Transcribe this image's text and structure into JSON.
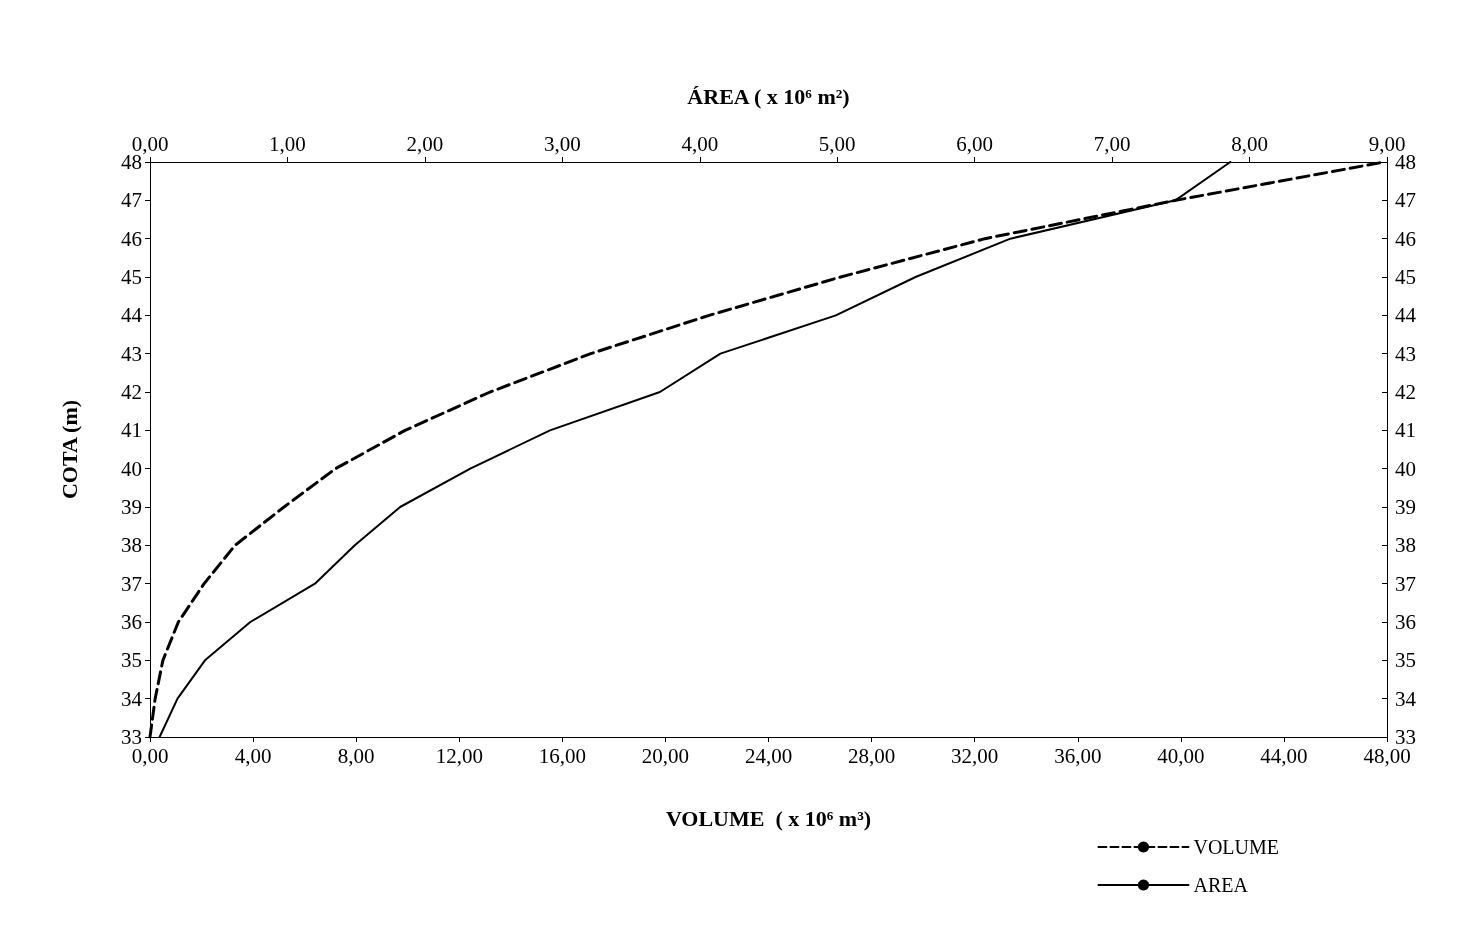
{
  "chart_data": {
    "type": "line",
    "xlabel": "VOLUME  ( x 10⁶ m³)",
    "x2label": "ÁREA ( x 10⁶ m²)",
    "ylabel": "COTA (m)",
    "xlim": [
      0,
      48
    ],
    "xticks": [
      {
        "value": 0,
        "label": "0,00"
      },
      {
        "value": 4,
        "label": "4,00"
      },
      {
        "value": 8,
        "label": "8,00"
      },
      {
        "value": 12,
        "label": "12,00"
      },
      {
        "value": 16,
        "label": "16,00"
      },
      {
        "value": 20,
        "label": "20,00"
      },
      {
        "value": 24,
        "label": "24,00"
      },
      {
        "value": 28,
        "label": "28,00"
      },
      {
        "value": 32,
        "label": "32,00"
      },
      {
        "value": 36,
        "label": "36,00"
      },
      {
        "value": 40,
        "label": "40,00"
      },
      {
        "value": 44,
        "label": "44,00"
      },
      {
        "value": 48,
        "label": "48,00"
      }
    ],
    "x2lim": [
      0,
      9
    ],
    "x2ticks": [
      {
        "value": 0,
        "label": "0,00"
      },
      {
        "value": 1,
        "label": "1,00"
      },
      {
        "value": 2,
        "label": "2,00"
      },
      {
        "value": 3,
        "label": "3,00"
      },
      {
        "value": 4,
        "label": "4,00"
      },
      {
        "value": 5,
        "label": "5,00"
      },
      {
        "value": 6,
        "label": "6,00"
      },
      {
        "value": 7,
        "label": "7,00"
      },
      {
        "value": 8,
        "label": "8,00"
      },
      {
        "value": 9,
        "label": "9,00"
      }
    ],
    "ylim": [
      33,
      48
    ],
    "yticks": [
      33,
      34,
      35,
      36,
      37,
      38,
      39,
      40,
      41,
      42,
      43,
      44,
      45,
      46,
      47,
      48
    ],
    "y2lim": [
      33,
      48
    ],
    "y2ticks": [
      33,
      34,
      35,
      36,
      37,
      38,
      39,
      40,
      41,
      42,
      43,
      44,
      45,
      46,
      47,
      48
    ],
    "series": [
      {
        "name": "VOLUME",
        "color": "#000000",
        "line_style": "dashed",
        "x": [
          0,
          0.2,
          0.5,
          1.1,
          2.1,
          3.3,
          5.2,
          7.2,
          9.9,
          13.2,
          17.1,
          21.7,
          26.8,
          32.4,
          39.8,
          47.9
        ],
        "values": [
          33,
          34,
          35,
          36,
          37,
          38,
          39,
          40,
          41,
          42,
          43,
          44,
          45,
          46,
          47,
          48
        ]
      },
      {
        "name": "AREA",
        "color": "#000000",
        "line_style": "solid",
        "axis": "x2",
        "x": [
          0.07,
          0.2,
          0.4,
          0.73,
          1.2,
          1.49,
          1.82,
          2.33,
          2.91,
          3.71,
          4.15,
          4.99,
          5.57,
          6.26,
          7.46,
          7.86
        ],
        "values": [
          33,
          34,
          35,
          36,
          37,
          38,
          39,
          40,
          41,
          42,
          43,
          44,
          45,
          46,
          47,
          48
        ]
      }
    ],
    "marker": "none",
    "grid": false,
    "legend": "bottom right"
  }
}
